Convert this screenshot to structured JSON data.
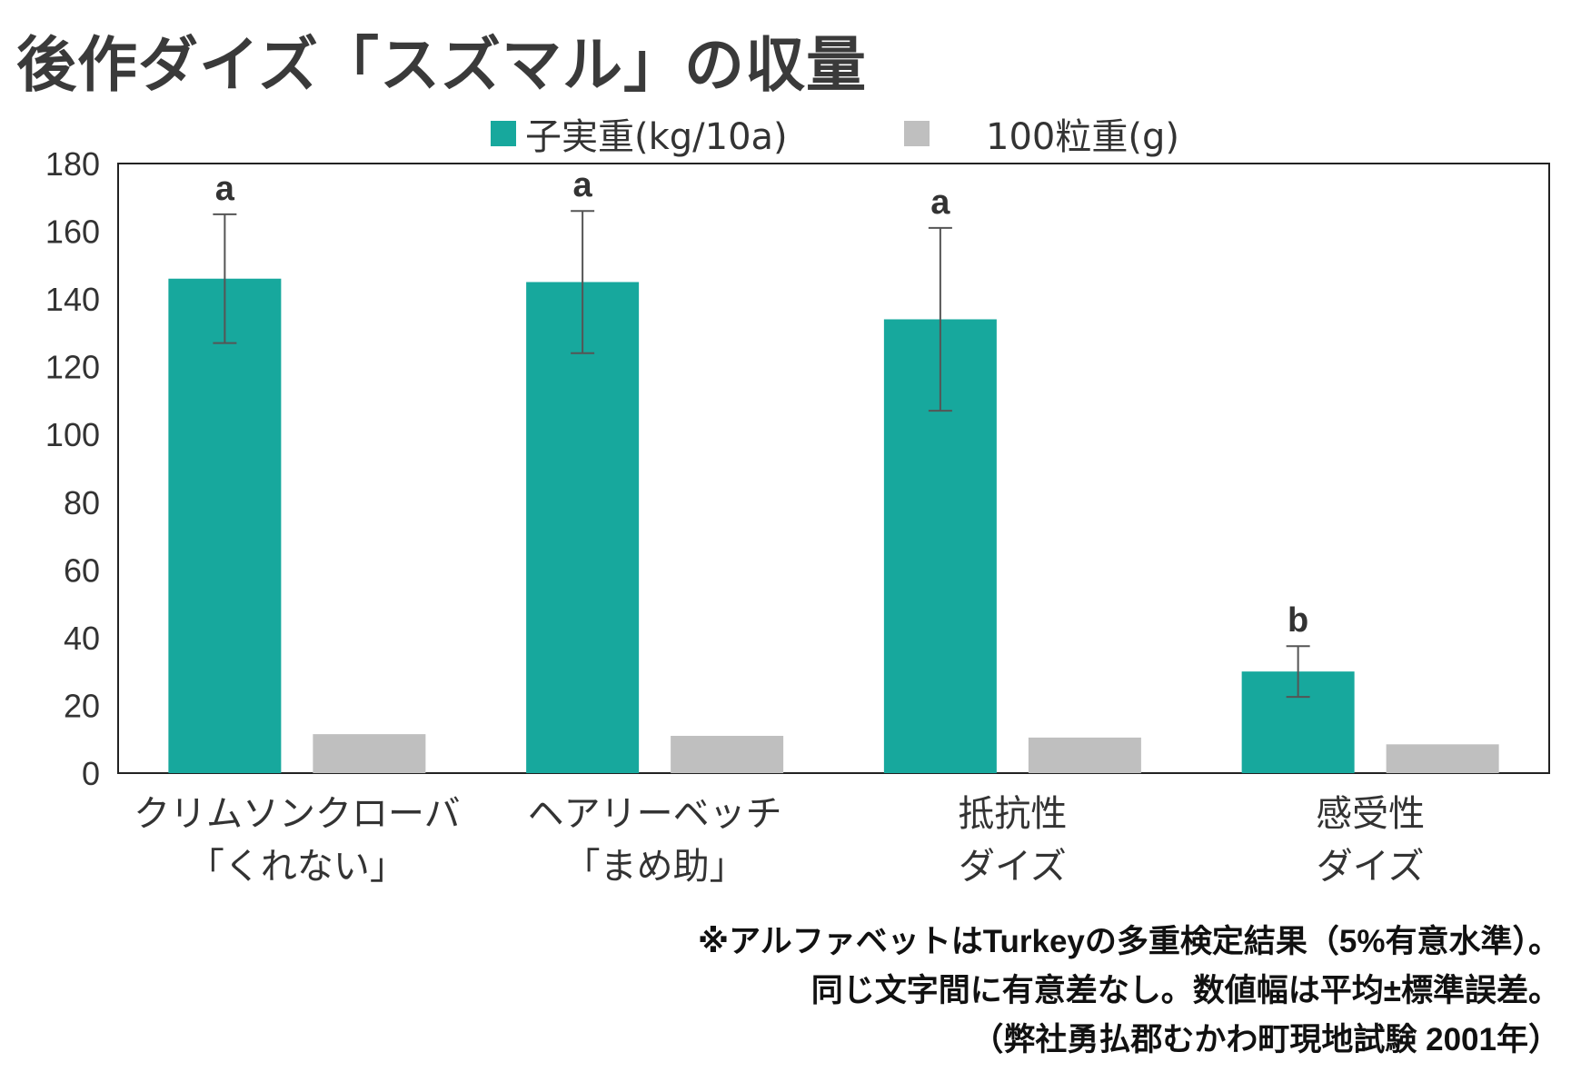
{
  "title": "後作ダイズ「スズマル」の収量",
  "legend": [
    {
      "label": "子実重(kg/10a)",
      "color": "#17a89d"
    },
    {
      "label": "100粒重(g)",
      "color": "#bfbfbf"
    }
  ],
  "chart_data": {
    "type": "bar",
    "categories": [
      [
        "クリムソンクローバ",
        "「くれない」"
      ],
      [
        "ヘアリーベッチ",
        "「まめ助」"
      ],
      [
        "抵抗性",
        "ダイズ"
      ],
      [
        "感受性",
        "ダイズ"
      ]
    ],
    "series": [
      {
        "name": "子実重(kg/10a)",
        "values": [
          146,
          145,
          134,
          30
        ],
        "error": [
          19,
          21,
          27,
          7.5
        ],
        "color": "#17a89d"
      },
      {
        "name": "100粒重(g)",
        "values": [
          11.5,
          11,
          10.5,
          8.5
        ],
        "color": "#bfbfbf"
      }
    ],
    "significance": [
      "a",
      "a",
      "a",
      "b"
    ],
    "ylim": [
      0,
      180
    ],
    "yticks": [
      0,
      20,
      40,
      60,
      80,
      100,
      120,
      140,
      160,
      180
    ],
    "legend_position": "top"
  },
  "notes": [
    "※アルファベットはTurkeyの多重検定結果（5%有意水準）。",
    "同じ文字間に有意差なし。数値幅は平均±標準誤差。",
    "（弊社勇払郡むかわ町現地試験 2001年）"
  ]
}
